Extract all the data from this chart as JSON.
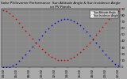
{
  "title": "Solar PV/Inverter Performance  Sun Altitude Angle & Sun Incidence Angle on PV Panels",
  "legend_blue": "Sun Altitude Angle",
  "legend_red": "Sun Incidence Angle",
  "background_color": "#aaaaaa",
  "plot_bg_color": "#888888",
  "grid_color": "#999999",
  "blue_color": "#0000cc",
  "red_color": "#cc0000",
  "ylim": [
    0,
    90
  ],
  "yticks": [
    0,
    10,
    20,
    30,
    40,
    50,
    60,
    70,
    80,
    90
  ],
  "blue_x": [
    0,
    1,
    2,
    3,
    4,
    5,
    6,
    7,
    8,
    9,
    10,
    11,
    12,
    13,
    14,
    15,
    16,
    17,
    18,
    19,
    20,
    21,
    22,
    23,
    24,
    25,
    26,
    27,
    28,
    29,
    30,
    31,
    32,
    33,
    34,
    35,
    36
  ],
  "blue_y": [
    0,
    0,
    0,
    2,
    5,
    9,
    14,
    19,
    25,
    31,
    37,
    43,
    49,
    55,
    60,
    64,
    68,
    71,
    73,
    74,
    74,
    73,
    71,
    68,
    64,
    60,
    55,
    49,
    43,
    37,
    31,
    25,
    19,
    14,
    9,
    5,
    2
  ],
  "red_x": [
    0,
    1,
    2,
    3,
    4,
    5,
    6,
    7,
    8,
    9,
    10,
    11,
    12,
    13,
    14,
    15,
    16,
    17,
    18,
    19,
    20,
    21,
    22,
    23,
    24,
    25,
    26,
    27,
    28,
    29,
    30,
    31,
    32,
    33,
    34,
    35,
    36
  ],
  "red_y": [
    88,
    86,
    83,
    79,
    74,
    68,
    62,
    56,
    50,
    44,
    38,
    33,
    28,
    23,
    19,
    16,
    13,
    11,
    10,
    10,
    11,
    13,
    16,
    19,
    23,
    28,
    33,
    38,
    44,
    50,
    56,
    62,
    68,
    74,
    79,
    83,
    86
  ],
  "xlim": [
    -0.5,
    36.5
  ],
  "xtick_pos": [
    0,
    4,
    8,
    12,
    16,
    20,
    24,
    28,
    32,
    36
  ],
  "xtick_labels": [
    "04:00",
    "06:00",
    "08:00",
    "10:00",
    "12:00",
    "14:00",
    "16:00",
    "18:00",
    "20:00",
    "22:00"
  ],
  "title_fontsize": 3.0,
  "tick_fontsize": 2.8,
  "legend_fontsize": 2.2,
  "marker_size": 1.5
}
